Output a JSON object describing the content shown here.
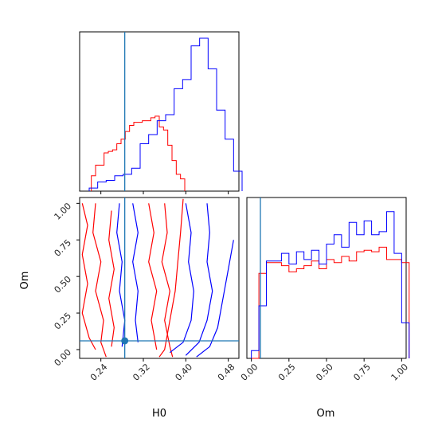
{
  "chart_data": [
    {
      "type": "histogram",
      "panel": "H0 marginal",
      "x_range": [
        0.2,
        0.5
      ],
      "series": [
        {
          "color": "#ff0000",
          "bins_x": [
            0.222,
            0.23,
            0.238,
            0.246,
            0.254,
            0.262,
            0.27,
            0.278,
            0.286,
            0.294,
            0.302,
            0.31,
            0.318,
            0.326,
            0.334,
            0.342,
            0.35,
            0.358,
            0.366,
            0.374,
            0.382,
            0.39
          ],
          "heights": [
            0.1,
            0.17,
            0.17,
            0.25,
            0.26,
            0.27,
            0.31,
            0.34,
            0.39,
            0.43,
            0.45,
            0.45,
            0.46,
            0.46,
            0.48,
            0.49,
            0.42,
            0.4,
            0.3,
            0.2,
            0.11,
            0.08
          ]
        },
        {
          "color": "#0000ff",
          "bins_x": [
            0.218,
            0.234,
            0.25,
            0.266,
            0.282,
            0.298,
            0.314,
            0.33,
            0.346,
            0.362,
            0.378,
            0.394,
            0.41,
            0.426,
            0.442,
            0.458,
            0.474,
            0.49
          ],
          "heights": [
            0.02,
            0.06,
            0.07,
            0.1,
            0.11,
            0.15,
            0.31,
            0.37,
            0.46,
            0.5,
            0.67,
            0.73,
            0.95,
            1.0,
            0.8,
            0.53,
            0.34,
            0.13
          ]
        }
      ],
      "vline": 0.285
    },
    {
      "type": "contour",
      "panel": "H0 vs Om",
      "xlabel": "H0",
      "ylabel": "Om",
      "x_ticks": [
        "0.24",
        "0.32",
        "0.40",
        "0.48"
      ],
      "y_ticks": [
        "0.00",
        "0.25",
        "0.50",
        "0.75",
        "1.00"
      ],
      "x_range": [
        0.2,
        0.5
      ],
      "y_range": [
        -0.06,
        1.04
      ],
      "truth": {
        "H0": 0.285,
        "Om": 0.06
      }
    },
    {
      "type": "histogram",
      "panel": "Om marginal",
      "xlabel": "Om",
      "x_ticks": [
        "0.00",
        "0.25",
        "0.50",
        "0.75",
        "1.00"
      ],
      "x_range": [
        -0.03,
        1.03
      ],
      "series": [
        {
          "color": "#ff0000",
          "bins_x": [
            0.0,
            0.05,
            0.1,
            0.15,
            0.2,
            0.25,
            0.3,
            0.35,
            0.4,
            0.45,
            0.5,
            0.55,
            0.6,
            0.65,
            0.7,
            0.75,
            0.8,
            0.85,
            0.9,
            0.95,
            1.0
          ],
          "heights": [
            0.0,
            0.55,
            0.62,
            0.62,
            0.6,
            0.56,
            0.58,
            0.6,
            0.63,
            0.58,
            0.64,
            0.62,
            0.66,
            0.63,
            0.69,
            0.7,
            0.69,
            0.72,
            0.64,
            0.64,
            0.62
          ]
        },
        {
          "color": "#0000ff",
          "bins_x": [
            0.0,
            0.05,
            0.1,
            0.15,
            0.2,
            0.25,
            0.3,
            0.35,
            0.4,
            0.45,
            0.5,
            0.55,
            0.6,
            0.65,
            0.7,
            0.75,
            0.8,
            0.85,
            0.9,
            0.95,
            1.0
          ],
          "heights": [
            0.05,
            0.34,
            0.63,
            0.63,
            0.68,
            0.61,
            0.69,
            0.64,
            0.7,
            0.61,
            0.74,
            0.8,
            0.72,
            0.88,
            0.8,
            0.89,
            0.8,
            0.82,
            0.95,
            0.68,
            0.23
          ]
        }
      ],
      "vline": 0.06
    }
  ],
  "colors": {
    "series_a": "#ff0000",
    "series_b": "#0000ff",
    "truth": "#1f77b4"
  },
  "labels": {
    "x_main": "H0",
    "y_main": "Om",
    "x_right": "Om"
  }
}
